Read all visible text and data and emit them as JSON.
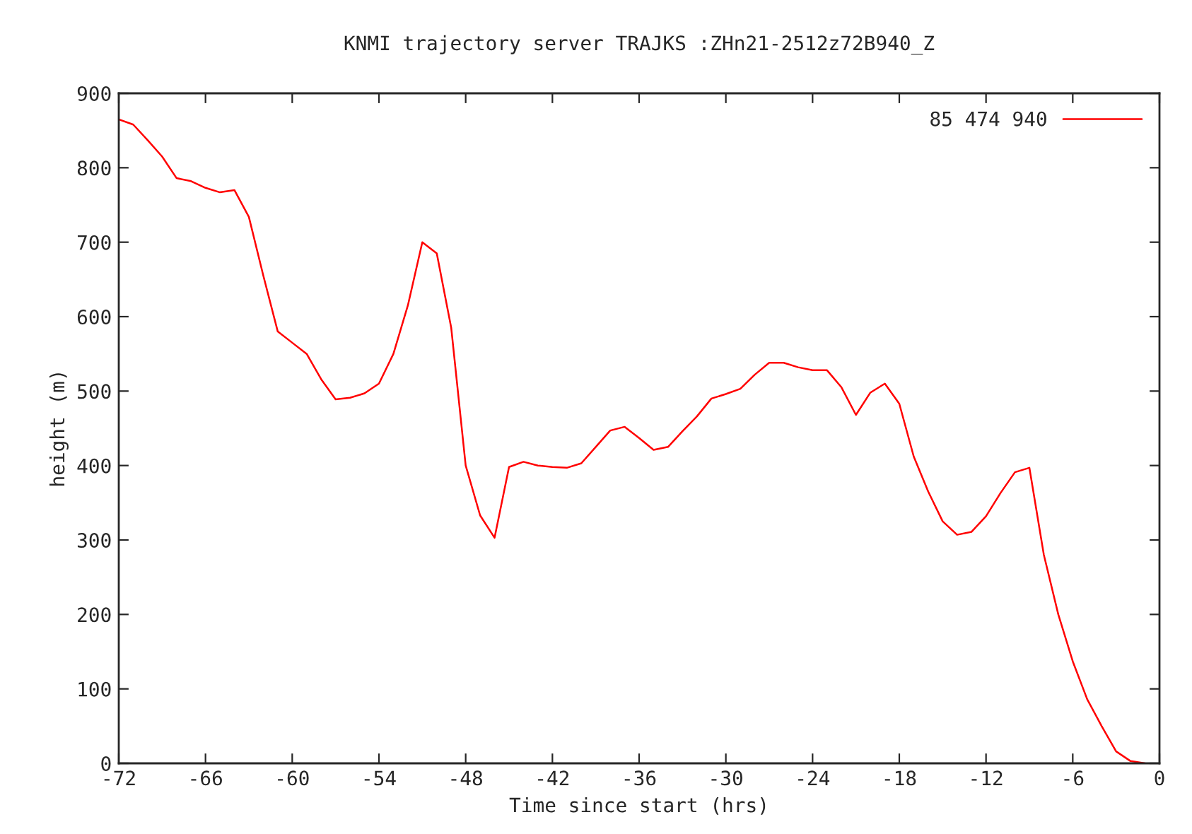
{
  "chart_data": {
    "type": "line",
    "title": "KNMI trajectory server TRAJKS :ZHn21-2512z72B940_Z",
    "xlabel": "Time since start (hrs)",
    "ylabel": "height (m)",
    "x": [
      -72,
      -71,
      -70,
      -69,
      -68,
      -67,
      -66,
      -65,
      -64,
      -63,
      -62,
      -61,
      -60,
      -59,
      -58,
      -57,
      -56,
      -55,
      -54,
      -53,
      -52,
      -51,
      -50,
      -49,
      -48,
      -47,
      -46,
      -45,
      -44,
      -43,
      -42,
      -41,
      -40,
      -39,
      -38,
      -37,
      -36,
      -35,
      -34,
      -33,
      -32,
      -31,
      -30,
      -29,
      -28,
      -27,
      -26,
      -25,
      -24,
      -23,
      -22,
      -21,
      -20,
      -19,
      -18,
      -17,
      -16,
      -15,
      -14,
      -13,
      -12,
      -11,
      -10,
      -9,
      -8,
      -7,
      -6,
      -5,
      -4,
      -3,
      -2,
      -1
    ],
    "series": [
      {
        "name": "85 474 940",
        "color": "#ff0000",
        "values": [
          865,
          858,
          837,
          815,
          786,
          782,
          773,
          767,
          770,
          734,
          655,
          580,
          565,
          550,
          516,
          489,
          491,
          497,
          510,
          550,
          615,
          700,
          685,
          585,
          400,
          333,
          303,
          398,
          405,
          400,
          398,
          397,
          403,
          425,
          447,
          452,
          437,
          421,
          425,
          446,
          466,
          490,
          496,
          503,
          522,
          538,
          538,
          532,
          528,
          528,
          505,
          468,
          498,
          510,
          483,
          412,
          365,
          325,
          307,
          311,
          332,
          363,
          391,
          397,
          280,
          200,
          137,
          86,
          50,
          16,
          3,
          0
        ]
      }
    ],
    "xlim": [
      -72,
      0
    ],
    "ylim": [
      0,
      900
    ],
    "xticks": [
      -72,
      -66,
      -60,
      -54,
      -48,
      -42,
      -36,
      -30,
      -24,
      -18,
      -12,
      -6,
      0
    ],
    "yticks": [
      0,
      100,
      200,
      300,
      400,
      500,
      600,
      700,
      800,
      900
    ],
    "legend": "top right",
    "grid": false,
    "marker": "none",
    "line_style": "solid"
  }
}
